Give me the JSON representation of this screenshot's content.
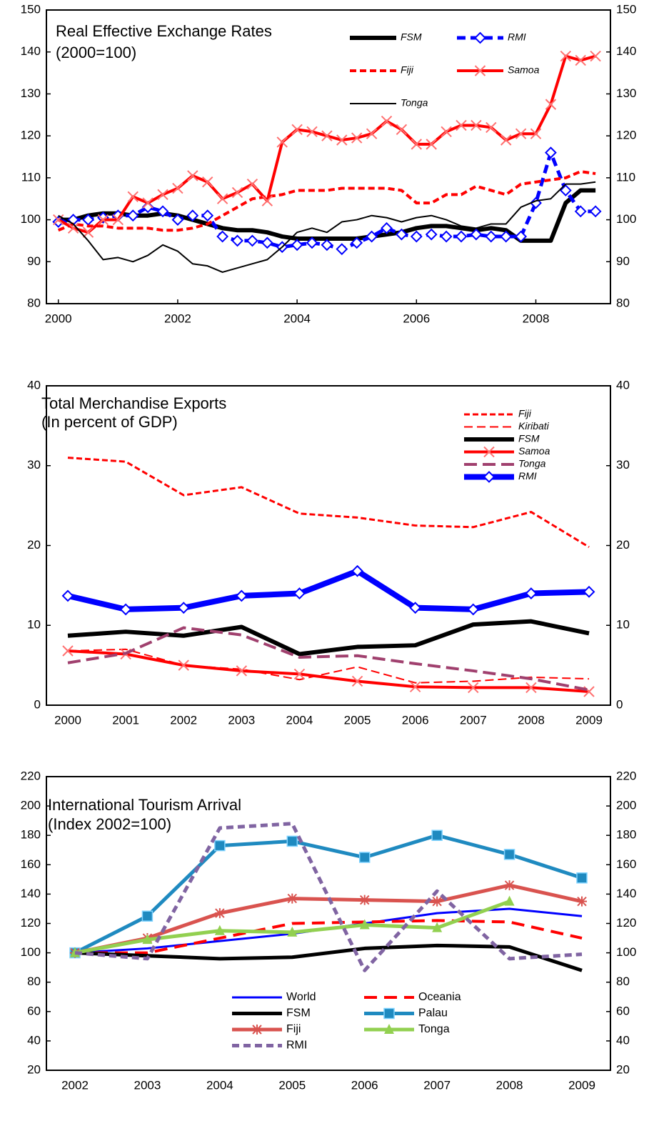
{
  "chart_data": [
    {
      "type": "line",
      "title": [
        "Real Effective Exchange Rates",
        "(2000=100)"
      ],
      "x": [
        2000,
        2000.25,
        2000.5,
        2000.75,
        2001,
        2001.25,
        2001.5,
        2001.75,
        2002,
        2002.25,
        2002.5,
        2002.75,
        2003,
        2003.25,
        2003.5,
        2003.75,
        2004,
        2004.25,
        2004.5,
        2004.75,
        2005,
        2005.25,
        2005.5,
        2005.75,
        2006,
        2006.25,
        2006.5,
        2006.75,
        2007,
        2007.25,
        2007.5,
        2007.75,
        2008,
        2008.25,
        2008.5,
        2008.75,
        2009
      ],
      "xlim": [
        1999.8,
        2009.25
      ],
      "xticks": [
        2000,
        2002,
        2004,
        2006,
        2008
      ],
      "ylim": [
        80,
        150
      ],
      "yticks": [
        80,
        90,
        100,
        110,
        120,
        130,
        140,
        150
      ],
      "y2lim": [
        80,
        150
      ],
      "y2ticks": [
        80,
        90,
        100,
        110,
        120,
        130,
        140,
        150
      ],
      "legend": "top-right",
      "series": [
        {
          "name": "FSM",
          "color": "#000000",
          "width": 6,
          "dash": "none",
          "marker": "none",
          "values": [
            100,
            100,
            101,
            101.5,
            101.5,
            101,
            101,
            101.5,
            101,
            100,
            99,
            98,
            97.5,
            97.5,
            97,
            96,
            95.5,
            95.5,
            95.5,
            95.5,
            95.5,
            96,
            96.5,
            97,
            98,
            98.5,
            98.5,
            98,
            97.5,
            98,
            97.5,
            95,
            95,
            95,
            104,
            107,
            107
          ]
        },
        {
          "name": "RMI",
          "color": "#0000ff",
          "width": 5,
          "dash": "12,7",
          "marker": "diamond",
          "values": [
            99.5,
            100,
            100,
            100.5,
            101,
            101,
            103,
            102,
            100,
            101,
            101,
            96,
            95,
            95,
            94.5,
            93.5,
            94,
            94.5,
            94,
            93,
            94.5,
            96,
            98,
            96.5,
            96,
            96.5,
            96,
            96,
            96.5,
            96,
            96,
            96,
            104,
            116,
            107,
            102,
            102
          ]
        },
        {
          "name": "Fiji",
          "color": "#ff0000",
          "width": 4,
          "dash": "9,5",
          "marker": "none",
          "values": [
            97.5,
            99,
            98.5,
            98.5,
            98,
            98,
            98,
            97.5,
            97.5,
            98,
            99,
            101,
            103,
            105,
            105.5,
            106,
            107,
            107,
            107,
            107.5,
            107.5,
            107.5,
            107.5,
            107,
            104,
            104,
            106,
            106,
            108,
            107,
            106,
            108.5,
            109,
            109.5,
            110,
            111.5,
            111
          ]
        },
        {
          "name": "Samoa",
          "color": "#ff0000",
          "width": 4,
          "dash": "none",
          "marker": "x",
          "values": [
            100,
            98,
            97,
            100,
            100,
            105.5,
            104,
            106,
            107.5,
            110.5,
            109,
            105,
            106.5,
            108.5,
            104.5,
            118.5,
            121.5,
            121,
            120,
            119,
            119.5,
            120.5,
            123.5,
            121.5,
            118,
            118,
            121,
            122.5,
            122.5,
            122,
            119,
            120.5,
            120.5,
            127.5,
            139,
            138,
            139
          ]
        },
        {
          "name": "Tonga",
          "color": "#000000",
          "width": 2,
          "dash": "none",
          "marker": "none",
          "values": [
            101,
            99,
            95,
            90.5,
            91,
            90,
            91.5,
            94,
            92.5,
            89.5,
            89,
            87.5,
            88.5,
            89.5,
            90.5,
            93.5,
            97,
            98,
            97,
            99.5,
            100,
            101,
            100.5,
            99.5,
            100.5,
            101,
            100,
            98.5,
            98,
            99,
            99,
            103,
            104.5,
            105,
            108.5,
            108.5,
            109
          ]
        }
      ]
    },
    {
      "type": "line",
      "title": [
        "Total Merchandise Exports",
        "(In percent of GDP)"
      ],
      "categories": [
        "2000",
        "2001",
        "2002",
        "2003",
        "2004",
        "2005",
        "2006",
        "2007",
        "2008",
        "2009"
      ],
      "ylim": [
        0,
        40
      ],
      "yticks": [
        0,
        10,
        20,
        30,
        40
      ],
      "y2lim": [
        0,
        40
      ],
      "y2ticks": [
        0,
        10,
        20,
        30,
        40
      ],
      "legend": "top-right",
      "series": [
        {
          "name": "Fiji",
          "color": "#ff0000",
          "width": 3,
          "dash": "8,4",
          "marker": "none",
          "values": [
            31,
            30.5,
            26.3,
            27.3,
            24,
            23.5,
            22.5,
            22.3,
            24.2,
            19.8
          ]
        },
        {
          "name": "Kiribati",
          "color": "#ff0000",
          "width": 2,
          "dash": "12,6",
          "marker": "none",
          "values": [
            6.8,
            7,
            5,
            4.5,
            3.2,
            4.8,
            2.8,
            3,
            3.5,
            3.3
          ]
        },
        {
          "name": "FSM",
          "color": "#000000",
          "width": 6,
          "dash": "none",
          "marker": "none",
          "values": [
            8.7,
            9.2,
            8.7,
            9.8,
            6.4,
            7.3,
            7.5,
            10.1,
            10.5,
            9
          ]
        },
        {
          "name": "Samoa",
          "color": "#ff0000",
          "width": 4,
          "dash": "none",
          "marker": "x",
          "values": [
            6.8,
            6.4,
            5,
            4.3,
            3.9,
            3,
            2.3,
            2.2,
            2.2,
            1.7
          ]
        },
        {
          "name": "Tonga",
          "color": "#a0406e",
          "width": 4,
          "dash": "18,8",
          "marker": "none",
          "values": [
            5.3,
            6.5,
            9.7,
            8.8,
            6,
            6.2,
            5.2,
            4.3,
            3.3,
            1.9
          ]
        },
        {
          "name": "RMI",
          "color": "#0000ff",
          "width": 8,
          "dash": "none",
          "marker": "diamond",
          "values": [
            13.7,
            12,
            12.2,
            13.7,
            14,
            16.8,
            12.2,
            12,
            14,
            14.2
          ]
        }
      ]
    },
    {
      "type": "line",
      "title": [
        "International Tourism Arrival",
        "(Index 2002=100)"
      ],
      "categories": [
        "2002",
        "2003",
        "2004",
        "2005",
        "2006",
        "2007",
        "2008",
        "2009"
      ],
      "ylim": [
        20,
        220
      ],
      "yticks": [
        20,
        40,
        60,
        80,
        100,
        120,
        140,
        160,
        180,
        200,
        220
      ],
      "y2lim": [
        20,
        220
      ],
      "y2ticks": [
        20,
        40,
        60,
        80,
        100,
        120,
        140,
        160,
        180,
        200,
        220
      ],
      "legend": "bottom-center",
      "series": [
        {
          "name": "World",
          "color": "#0000ff",
          "width": 3,
          "dash": "none",
          "marker": "none",
          "values": [
            100,
            103,
            108,
            113,
            120,
            127,
            130,
            125
          ]
        },
        {
          "name": "Oceania",
          "color": "#ff0000",
          "width": 4,
          "dash": "18,10",
          "marker": "none",
          "values": [
            100,
            100,
            110,
            120,
            121,
            122,
            121,
            110
          ]
        },
        {
          "name": "FSM",
          "color": "#000000",
          "width": 5,
          "dash": "none",
          "marker": "none",
          "values": [
            100,
            98,
            96,
            97,
            103,
            105,
            104,
            88
          ]
        },
        {
          "name": "Palau",
          "color": "#1f8ac0",
          "width": 5,
          "dash": "none",
          "marker": "square",
          "values": [
            100,
            125,
            173,
            176,
            165,
            180,
            167,
            151
          ]
        },
        {
          "name": "Fiji",
          "color": "#d9534f",
          "width": 5,
          "dash": "none",
          "marker": "star",
          "values": [
            100,
            110,
            127,
            137,
            136,
            135,
            146,
            135
          ]
        },
        {
          "name": "Tonga",
          "color": "#92d050",
          "width": 5,
          "dash": "none",
          "marker": "triangle",
          "values": [
            100,
            109,
            115,
            114,
            119,
            117,
            135,
            null
          ]
        },
        {
          "name": "RMI",
          "color": "#8064a2",
          "width": 5,
          "dash": "10,6",
          "marker": "none",
          "values": [
            100,
            96,
            185,
            188,
            88,
            142,
            96,
            99
          ]
        }
      ]
    }
  ]
}
